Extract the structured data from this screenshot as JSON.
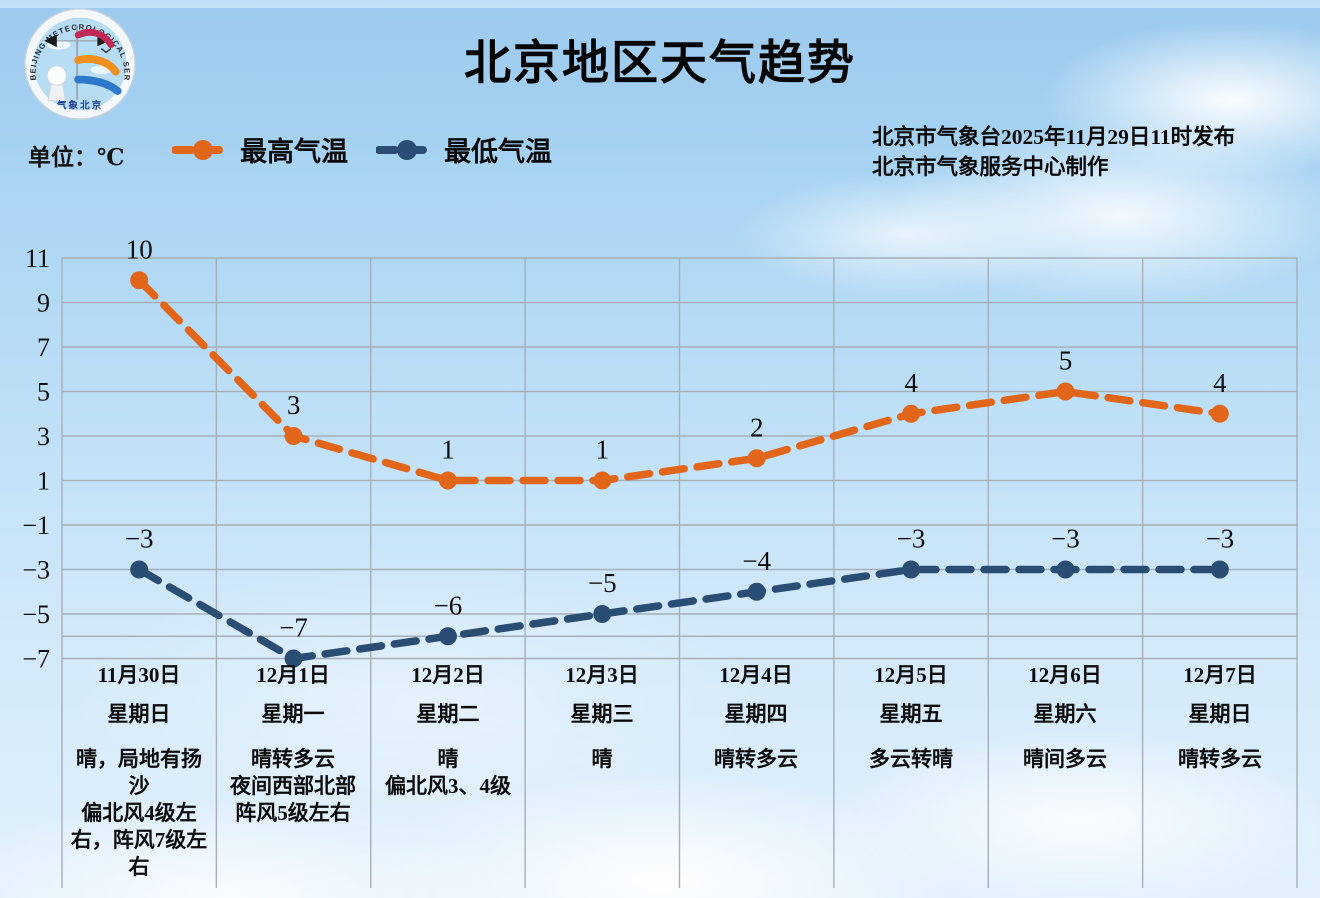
{
  "header": {
    "title": "北京地区天气趋势",
    "unit_label": "单位：℃",
    "publisher_line1": "北京市气象台2025年11月29日11时发布",
    "publisher_line2": "北京市气象服务中心制作"
  },
  "logo": {
    "arc_text": "BEIJING METEOROLOGICAL SERVICE",
    "bottom_text": "气象北京"
  },
  "legend": {
    "items": [
      {
        "label": "最高气温",
        "color": "#E2661A"
      },
      {
        "label": "最低气温",
        "color": "#2A4D74"
      }
    ]
  },
  "chart_data": {
    "type": "line",
    "title": "北京地区天气趋势",
    "unit": "℃",
    "categories": [
      "11月30日",
      "12月1日",
      "12月2日",
      "12月3日",
      "12月4日",
      "12月5日",
      "12月6日",
      "12月7日"
    ],
    "series": [
      {
        "name": "最高气温",
        "color": "#E2661A",
        "values": [
          10,
          3,
          1,
          1,
          2,
          4,
          5,
          4
        ],
        "labels": [
          "10",
          "3",
          "1",
          "1",
          "2",
          "4",
          "5",
          "4"
        ]
      },
      {
        "name": "最低气温",
        "color": "#2A4D74",
        "values": [
          -3,
          -7,
          -6,
          -5,
          -4,
          -3,
          -3,
          -3
        ],
        "labels": [
          "−3",
          "−7",
          "−6",
          "−5",
          "−4",
          "−3",
          "−3",
          "−3"
        ]
      }
    ],
    "ylim": [
      -7,
      11
    ],
    "yticks": [
      11,
      9,
      7,
      5,
      3,
      1,
      -1,
      -3,
      -5,
      -7
    ],
    "ytick_labels": [
      "11",
      "9",
      "7",
      "5",
      "3",
      "1",
      "−1",
      "−3",
      "−5",
      "−7"
    ],
    "grid": true,
    "line_style": "dashed",
    "legend_position": "top-left"
  },
  "days": [
    {
      "date": "11月30日",
      "weekday": "星期日",
      "weather": [
        "晴，局地有扬沙",
        "偏北风4级左右，阵风7级左右"
      ]
    },
    {
      "date": "12月1日",
      "weekday": "星期一",
      "weather": [
        "晴转多云",
        "夜间西部北部阵风5级左右"
      ]
    },
    {
      "date": "12月2日",
      "weekday": "星期二",
      "weather": [
        "晴",
        "偏北风3、4级"
      ]
    },
    {
      "date": "12月3日",
      "weekday": "星期三",
      "weather": [
        "晴"
      ]
    },
    {
      "date": "12月4日",
      "weekday": "星期四",
      "weather": [
        "晴转多云"
      ]
    },
    {
      "date": "12月5日",
      "weekday": "星期五",
      "weather": [
        "多云转晴"
      ]
    },
    {
      "date": "12月6日",
      "weekday": "星期六",
      "weather": [
        "晴间多云"
      ]
    },
    {
      "date": "12月7日",
      "weekday": "星期日",
      "weather": [
        "晴转多云"
      ]
    }
  ],
  "colors": {
    "grid": "#A6AFB8",
    "text": "#121212",
    "sky_top": "#9CCAEE",
    "sky_bottom": "#E2F1FC"
  }
}
